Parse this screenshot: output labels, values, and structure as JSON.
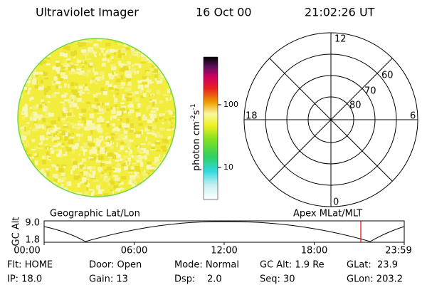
{
  "header": {
    "title": "Ultraviolet Imager",
    "date": "16 Oct 00",
    "time": "21:02:26 UT"
  },
  "colorbar": {
    "label": "photon cm",
    "exp1": "-2",
    "unit": "s",
    "exp2": "-1",
    "ticks": [
      "100",
      "10"
    ]
  },
  "polar": {
    "ring_labels": [
      "60",
      "70",
      "80"
    ],
    "mlt_labels": [
      "12",
      "18",
      "6",
      "0"
    ]
  },
  "orbit_plot": {
    "left_title": "Geographic Lat/Lon",
    "right_title": "Apex MLat/MLT",
    "y_label": "GC Alt",
    "y_ticks": [
      "9.0",
      "1.8"
    ],
    "x_ticks": [
      "00:00",
      "06:00",
      "12:00",
      "18:00",
      "23:59"
    ]
  },
  "status": {
    "rows": [
      [
        "Flt: HOME",
        "Door: Open",
        "Mode: Normal",
        "GC Alt: 1.9 Re",
        "GLat:  23.9"
      ],
      [
        "IP: 18.0",
        "Gain: 13",
        "Dsp:    2.0",
        "Seq: 30",
        "GLon: 203.2"
      ]
    ]
  }
}
